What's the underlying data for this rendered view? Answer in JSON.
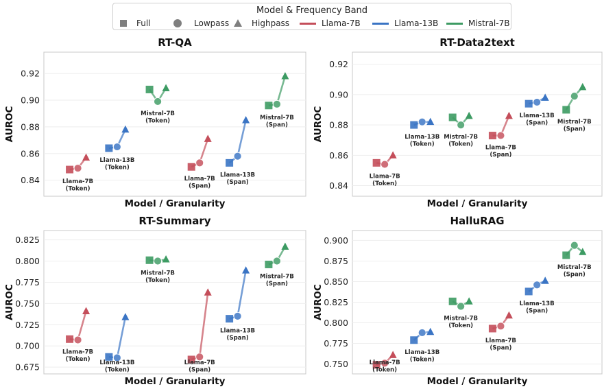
{
  "legend": {
    "title": "Model & Frequency Band",
    "items": [
      {
        "label": "Full",
        "kind": "square",
        "color": "#7f7f7f"
      },
      {
        "label": "Lowpass",
        "kind": "circle",
        "color": "#7f7f7f"
      },
      {
        "label": "Highpass",
        "kind": "triangle",
        "color": "#7f7f7f"
      },
      {
        "label": "Llama-7B",
        "kind": "line",
        "color": "#c44e5a"
      },
      {
        "label": "Llama-13B",
        "kind": "line",
        "color": "#3a74c4"
      },
      {
        "label": "Mistral-7B",
        "kind": "line",
        "color": "#3d9b63"
      }
    ]
  },
  "colors": {
    "Llama-7B": "#c44e5a",
    "Llama-13B": "#3a74c4",
    "Mistral-7B": "#3d9b63"
  },
  "chart_data": [
    {
      "type": "scatter",
      "title": "RT-QA",
      "xlabel": "Model / Granularity",
      "ylabel": "AUROC",
      "ylim": [
        0.828,
        0.936
      ],
      "yticks": [
        "0.84",
        "0.86",
        "0.88",
        "0.90",
        "0.92"
      ],
      "groups": [
        {
          "model": "Llama-7B",
          "label": [
            "Llama-7B",
            "(Token)"
          ],
          "full": 0.848,
          "lowpass": 0.849,
          "highpass": 0.857
        },
        {
          "model": "Llama-13B",
          "label": [
            "Llama-13B",
            "(Token)"
          ],
          "full": 0.864,
          "lowpass": 0.865,
          "highpass": 0.878
        },
        {
          "model": "Mistral-7B",
          "label": [
            "Mistral-7B",
            "(Token)"
          ],
          "full": 0.908,
          "lowpass": 0.899,
          "highpass": 0.909
        },
        {
          "model": "Llama-7B",
          "label": [
            "Llama-7B",
            "(Span)"
          ],
          "full": 0.85,
          "lowpass": 0.853,
          "highpass": 0.871
        },
        {
          "model": "Llama-13B",
          "label": [
            "Llama-13B",
            "(Span)"
          ],
          "full": 0.853,
          "lowpass": 0.858,
          "highpass": 0.885
        },
        {
          "model": "Mistral-7B",
          "label": [
            "Mistral-7B",
            "(Span)"
          ],
          "full": 0.896,
          "lowpass": 0.897,
          "highpass": 0.918
        }
      ]
    },
    {
      "type": "scatter",
      "title": "RT-Data2text",
      "xlabel": "Model / Granularity",
      "ylabel": "AUROC",
      "ylim": [
        0.833,
        0.928
      ],
      "yticks": [
        "0.84",
        "0.86",
        "0.88",
        "0.90",
        "0.92"
      ],
      "groups": [
        {
          "model": "Llama-7B",
          "label": [
            "Llama-7B",
            "(Token)"
          ],
          "full": 0.855,
          "lowpass": 0.854,
          "highpass": 0.86
        },
        {
          "model": "Llama-13B",
          "label": [
            "Llama-13B",
            "(Token)"
          ],
          "full": 0.88,
          "lowpass": 0.882,
          "highpass": 0.882
        },
        {
          "model": "Mistral-7B",
          "label": [
            "Mistral-7B",
            "(Token)"
          ],
          "full": 0.885,
          "lowpass": 0.88,
          "highpass": 0.886
        },
        {
          "model": "Llama-7B",
          "label": [
            "Llama-7B",
            "(Span)"
          ],
          "full": 0.873,
          "lowpass": 0.873,
          "highpass": 0.886
        },
        {
          "model": "Llama-13B",
          "label": [
            "Llama-13B",
            "(Span)"
          ],
          "full": 0.894,
          "lowpass": 0.895,
          "highpass": 0.898
        },
        {
          "model": "Mistral-7B",
          "label": [
            "Mistral-7B",
            "(Span)"
          ],
          "full": 0.89,
          "lowpass": 0.899,
          "highpass": 0.905
        }
      ]
    },
    {
      "type": "scatter",
      "title": "RT-Summary",
      "xlabel": "Model / Granularity",
      "ylabel": "AUROC",
      "ylim": [
        0.667,
        0.836
      ],
      "yticks": [
        "0.675",
        "0.700",
        "0.725",
        "0.750",
        "0.775",
        "0.800",
        "0.825"
      ],
      "groups": [
        {
          "model": "Llama-7B",
          "label": [
            "Llama-7B",
            "(Token)"
          ],
          "full": 0.708,
          "lowpass": 0.707,
          "highpass": 0.741
        },
        {
          "model": "Llama-13B",
          "label": [
            "Llama-13B",
            "(Token)"
          ],
          "full": 0.687,
          "lowpass": 0.686,
          "highpass": 0.734
        },
        {
          "model": "Mistral-7B",
          "label": [
            "Mistral-7B",
            "(Token)"
          ],
          "full": 0.801,
          "lowpass": 0.8,
          "highpass": 0.802
        },
        {
          "model": "Llama-7B",
          "label": [
            "Llama-7B",
            "(Span)"
          ],
          "full": 0.684,
          "lowpass": 0.687,
          "highpass": 0.763
        },
        {
          "model": "Llama-13B",
          "label": [
            "Llama-13B",
            "(Span)"
          ],
          "full": 0.732,
          "lowpass": 0.735,
          "highpass": 0.789
        },
        {
          "model": "Mistral-7B",
          "label": [
            "Mistral-7B",
            "(Span)"
          ],
          "full": 0.796,
          "lowpass": 0.8,
          "highpass": 0.817
        }
      ]
    },
    {
      "type": "scatter",
      "title": "HalluRAG",
      "xlabel": "Model / Granularity",
      "ylabel": "AUROC",
      "ylim": [
        0.738,
        0.912
      ],
      "yticks": [
        "0.750",
        "0.775",
        "0.800",
        "0.825",
        "0.850",
        "0.875",
        "0.900"
      ],
      "groups": [
        {
          "model": "Llama-7B",
          "label": [
            "Llama-7B",
            "(Token)"
          ],
          "full": 0.749,
          "lowpass": 0.751,
          "highpass": 0.761
        },
        {
          "model": "Llama-13B",
          "label": [
            "Llama-13B",
            "(Token)"
          ],
          "full": 0.779,
          "lowpass": 0.788,
          "highpass": 0.789
        },
        {
          "model": "Mistral-7B",
          "label": [
            "Mistral-7B",
            "(Token)"
          ],
          "full": 0.826,
          "lowpass": 0.82,
          "highpass": 0.826
        },
        {
          "model": "Llama-7B",
          "label": [
            "Llama-7B",
            "(Span)"
          ],
          "full": 0.793,
          "lowpass": 0.796,
          "highpass": 0.809
        },
        {
          "model": "Llama-13B",
          "label": [
            "Llama-13B",
            "(Span)"
          ],
          "full": 0.838,
          "lowpass": 0.846,
          "highpass": 0.851
        },
        {
          "model": "Mistral-7B",
          "label": [
            "Mistral-7B",
            "(Span)"
          ],
          "full": 0.882,
          "lowpass": 0.894,
          "highpass": 0.886
        }
      ]
    }
  ]
}
